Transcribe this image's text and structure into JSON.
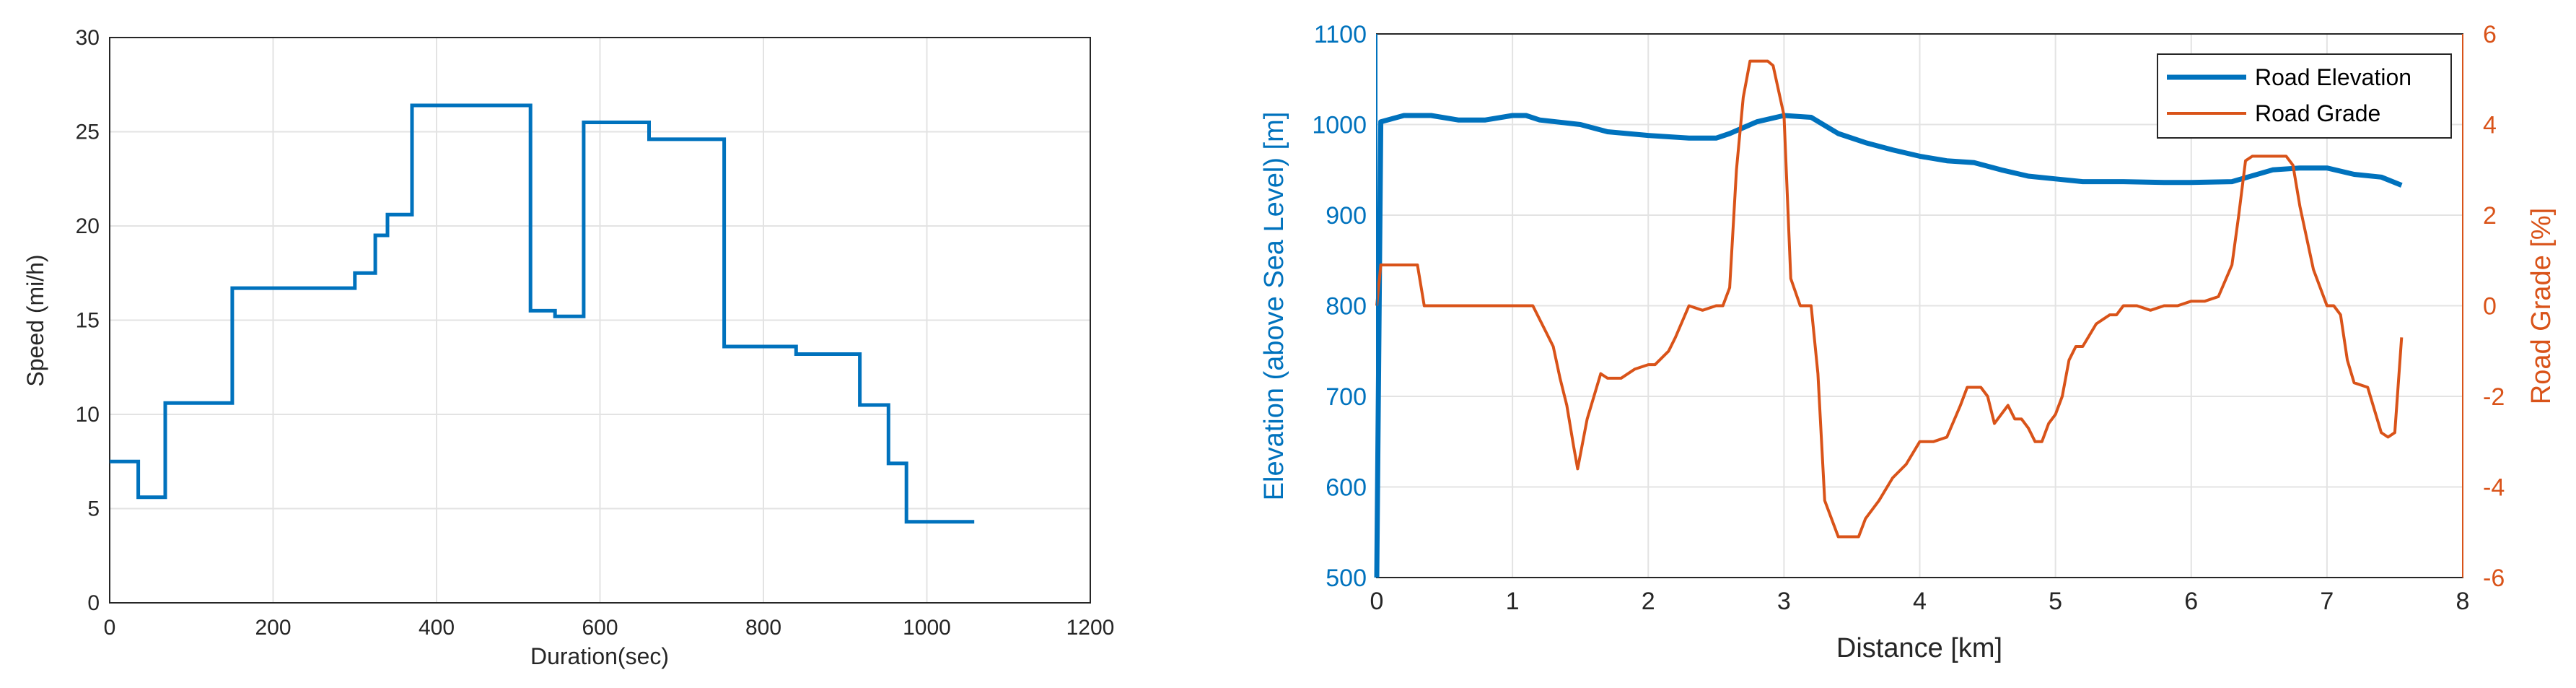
{
  "colors": {
    "blue": "#0072BD",
    "orange": "#D95319",
    "grid": "#e3e3e3",
    "axis": "#262626"
  },
  "chart_data": [
    {
      "type": "line",
      "title": "",
      "xlabel": "Duration(sec)",
      "ylabel": "Speed (mi/h)",
      "xlim": [
        0,
        1200
      ],
      "ylim": [
        0,
        30
      ],
      "xticks": [
        0,
        200,
        400,
        600,
        800,
        1000,
        1200
      ],
      "yticks": [
        0,
        5,
        10,
        15,
        20,
        25,
        30
      ],
      "grid": true,
      "series": [
        {
          "color": "#0072BD",
          "step": true,
          "x": [
            0,
            35,
            35,
            68,
            68,
            150,
            150,
            300,
            300,
            325,
            325,
            340,
            340,
            370,
            370,
            515,
            515,
            545,
            545,
            580,
            580,
            660,
            660,
            752,
            752,
            840,
            840,
            918,
            918,
            953,
            953,
            975,
            975,
            1058
          ],
          "y": [
            7.5,
            7.5,
            5.6,
            5.6,
            10.6,
            10.6,
            16.7,
            16.7,
            17.5,
            17.5,
            19.5,
            19.5,
            20.6,
            20.6,
            26.4,
            26.4,
            15.5,
            15.5,
            15.2,
            15.2,
            25.5,
            25.5,
            24.6,
            24.6,
            13.6,
            13.6,
            13.2,
            13.2,
            10.5,
            10.5,
            7.4,
            7.4,
            4.3,
            4.3
          ]
        }
      ]
    },
    {
      "type": "line",
      "title": "",
      "xlabel": "Distance [km]",
      "ylabel": "Elevation (above Sea Level) [m]",
      "ylabel_right": "Road Grade [%]",
      "xlim": [
        0,
        8
      ],
      "ylim": [
        500,
        1100
      ],
      "ylim_right": [
        -6,
        6
      ],
      "xticks": [
        0,
        1,
        2,
        3,
        4,
        5,
        6,
        7,
        8
      ],
      "yticks": [
        500,
        600,
        700,
        800,
        900,
        1000,
        1100
      ],
      "yticks_right": [
        -6,
        -4,
        -2,
        0,
        2,
        4,
        6
      ],
      "grid": true,
      "legend": "top-right",
      "series": [
        {
          "name": "Road Elevation",
          "axis": "left",
          "color": "#0072BD",
          "x": [
            0,
            0.03,
            0.2,
            0.4,
            0.6,
            0.8,
            1.0,
            1.1,
            1.2,
            1.5,
            1.7,
            2.0,
            2.3,
            2.5,
            2.6,
            2.8,
            3.0,
            3.2,
            3.4,
            3.6,
            3.8,
            4.0,
            4.2,
            4.4,
            4.6,
            4.8,
            5.0,
            5.2,
            5.5,
            5.8,
            6.0,
            6.3,
            6.6,
            6.8,
            7.0,
            7.2,
            7.4,
            7.55
          ],
          "y": [
            500,
            1003,
            1010,
            1010,
            1005,
            1005,
            1010,
            1010,
            1005,
            1000,
            992,
            988,
            985,
            985,
            990,
            1003,
            1010,
            1008,
            990,
            980,
            972,
            965,
            960,
            958,
            950,
            943,
            940,
            937,
            937,
            936,
            936,
            937,
            950,
            952,
            952,
            945,
            942,
            933
          ]
        },
        {
          "name": "Road Grade",
          "axis": "right",
          "color": "#D95319",
          "x": [
            0,
            0.03,
            0.3,
            0.35,
            1.15,
            1.25,
            1.3,
            1.35,
            1.4,
            1.45,
            1.48,
            1.55,
            1.65,
            1.7,
            1.8,
            1.9,
            2.0,
            2.05,
            2.15,
            2.2,
            2.3,
            2.4,
            2.5,
            2.55,
            2.6,
            2.65,
            2.7,
            2.75,
            2.8,
            2.85,
            2.88,
            2.92,
            3.0,
            3.05,
            3.12,
            3.2,
            3.25,
            3.3,
            3.4,
            3.5,
            3.55,
            3.6,
            3.7,
            3.8,
            3.9,
            4.0,
            4.1,
            4.2,
            4.3,
            4.35,
            4.4,
            4.45,
            4.5,
            4.55,
            4.6,
            4.65,
            4.7,
            4.75,
            4.8,
            4.85,
            4.9,
            4.95,
            5.0,
            5.05,
            5.1,
            5.15,
            5.2,
            5.3,
            5.35,
            5.4,
            5.45,
            5.5,
            5.6,
            5.7,
            5.8,
            5.9,
            6.0,
            6.1,
            6.2,
            6.3,
            6.35,
            6.4,
            6.45,
            6.7,
            6.75,
            6.8,
            6.9,
            7.0,
            7.05,
            7.1,
            7.15,
            7.2,
            7.3,
            7.4,
            7.45,
            7.5,
            7.55
          ],
          "y": [
            0,
            0.9,
            0.9,
            0,
            0,
            -0.6,
            -0.9,
            -1.6,
            -2.2,
            -3.1,
            -3.6,
            -2.5,
            -1.5,
            -1.6,
            -1.6,
            -1.4,
            -1.3,
            -1.3,
            -1.0,
            -0.7,
            0,
            -0.1,
            0,
            0,
            0.4,
            3.0,
            4.6,
            5.4,
            5.4,
            5.4,
            5.4,
            5.3,
            4.2,
            0.6,
            0,
            0,
            -1.5,
            -4.3,
            -5.1,
            -5.1,
            -5.1,
            -4.7,
            -4.3,
            -3.8,
            -3.5,
            -3.0,
            -3.0,
            -2.9,
            -2.2,
            -1.8,
            -1.8,
            -1.8,
            -2.0,
            -2.6,
            -2.4,
            -2.2,
            -2.5,
            -2.5,
            -2.7,
            -3.0,
            -3.0,
            -2.6,
            -2.4,
            -2.0,
            -1.2,
            -0.9,
            -0.9,
            -0.4,
            -0.3,
            -0.2,
            -0.2,
            0,
            0,
            -0.1,
            0,
            0,
            0.1,
            0.1,
            0.2,
            0.9,
            2.0,
            3.2,
            3.3,
            3.3,
            3.1,
            2.2,
            0.8,
            0,
            0,
            -0.2,
            -1.2,
            -1.7,
            -1.8,
            -2.8,
            -2.9,
            -2.8,
            -0.7
          ]
        }
      ]
    }
  ]
}
